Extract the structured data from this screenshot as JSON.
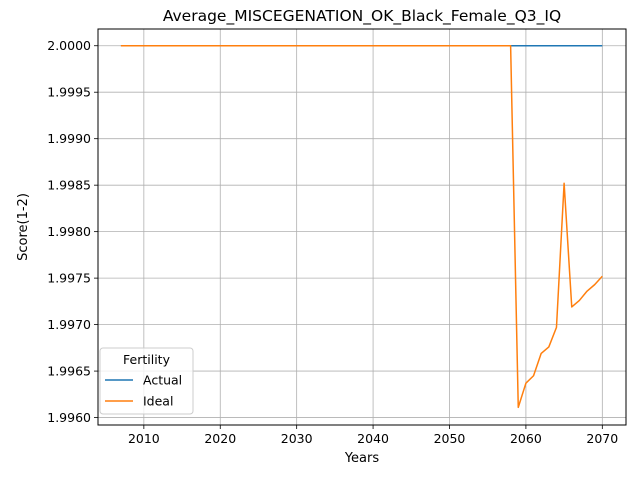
{
  "chart_data": {
    "type": "line",
    "title": "Average_MISCEGENATION_OK_Black_Female_Q3_IQ",
    "xlabel": "Years",
    "ylabel": "Score(1-2)",
    "xlim": [
      2004,
      2073.1
    ],
    "ylim": [
      1.99592,
      2.00018
    ],
    "xticks": [
      2010,
      2020,
      2030,
      2040,
      2050,
      2060,
      2070
    ],
    "xtick_labels": [
      "2010",
      "2020",
      "2030",
      "2040",
      "2050",
      "2060",
      "2070"
    ],
    "yticks": [
      1.996,
      1.9965,
      1.997,
      1.9975,
      1.998,
      1.9985,
      1.999,
      1.9995,
      2.0
    ],
    "ytick_labels": [
      "1.9960",
      "1.9965",
      "1.9970",
      "1.9975",
      "1.9980",
      "1.9985",
      "1.9990",
      "1.9995",
      "2.0000"
    ],
    "grid": true,
    "legend": {
      "title": "Fertility",
      "position": "lower-left"
    },
    "series": [
      {
        "name": "Actual",
        "color": "#1f77b4",
        "x": [
          2007,
          2070
        ],
        "y": [
          2.0,
          2.0
        ]
      },
      {
        "name": "Ideal",
        "color": "#ff7f0e",
        "x": [
          2007,
          2058,
          2059,
          2060,
          2061,
          2062,
          2063,
          2064,
          2065,
          2066,
          2067,
          2068,
          2069,
          2070
        ],
        "y": [
          2.0,
          2.0,
          1.99611,
          1.99637,
          1.99645,
          1.99669,
          1.99676,
          1.99697,
          1.99852,
          1.99719,
          1.99726,
          1.99736,
          1.99743,
          1.99752
        ]
      }
    ]
  }
}
